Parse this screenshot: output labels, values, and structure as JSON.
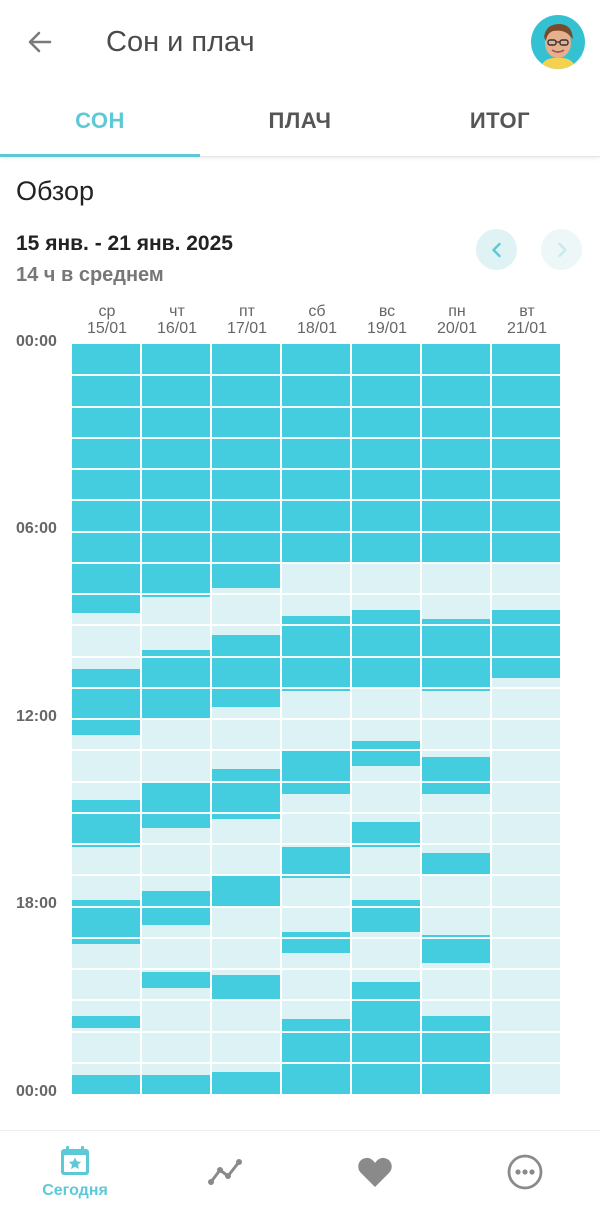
{
  "header": {
    "title": "Сон и плач",
    "back_icon": "arrow-left-icon",
    "avatar": "user-avatar"
  },
  "tabs": [
    {
      "label": "СОН",
      "active": true
    },
    {
      "label": "ПЛАЧ",
      "active": false
    },
    {
      "label": "ИТОГ",
      "active": false
    }
  ],
  "overview": {
    "title": "Обзор",
    "date_range": "15 янв. - 21 янв. 2025",
    "average": "14 ч в среднем"
  },
  "chart_data": {
    "type": "heatmap",
    "title": "Обзор",
    "y_axis_labels": [
      "00:00",
      "06:00",
      "12:00",
      "18:00",
      "00:00"
    ],
    "y_range_hours": [
      0,
      24
    ],
    "days": [
      {
        "weekday": "ср",
        "date": "15/01",
        "sleep_hours": [
          [
            0,
            8.6
          ],
          [
            10.4,
            12.5
          ],
          [
            14.6,
            16.1
          ],
          [
            17.8,
            19.2
          ],
          [
            21.5,
            21.9
          ],
          [
            23.4,
            24
          ]
        ]
      },
      {
        "weekday": "чт",
        "date": "16/01",
        "sleep_hours": [
          [
            0,
            8.1
          ],
          [
            9.8,
            12.0
          ],
          [
            14.0,
            15.5
          ],
          [
            17.5,
            18.6
          ],
          [
            20.1,
            20.6
          ],
          [
            23.4,
            24
          ]
        ]
      },
      {
        "weekday": "пт",
        "date": "17/01",
        "sleep_hours": [
          [
            0,
            7.8
          ],
          [
            9.3,
            11.6
          ],
          [
            13.6,
            15.2
          ],
          [
            17.0,
            18.0
          ],
          [
            20.2,
            21.0
          ],
          [
            23.3,
            24
          ]
        ]
      },
      {
        "weekday": "сб",
        "date": "18/01",
        "sleep_hours": [
          [
            0,
            7.0
          ],
          [
            8.7,
            11.1
          ],
          [
            13.0,
            14.4
          ],
          [
            16.1,
            17.1
          ],
          [
            18.8,
            19.5
          ],
          [
            21.6,
            24
          ]
        ]
      },
      {
        "weekday": "вс",
        "date": "19/01",
        "sleep_hours": [
          [
            0,
            7.0
          ],
          [
            8.5,
            11.0
          ],
          [
            12.7,
            13.5
          ],
          [
            15.3,
            16.1
          ],
          [
            17.8,
            18.8
          ],
          [
            20.4,
            24
          ]
        ]
      },
      {
        "weekday": "пн",
        "date": "20/01",
        "sleep_hours": [
          [
            0,
            7.0
          ],
          [
            8.8,
            11.1
          ],
          [
            13.2,
            14.4
          ],
          [
            16.3,
            17.0
          ],
          [
            18.9,
            19.8
          ],
          [
            21.5,
            24
          ]
        ]
      },
      {
        "weekday": "вт",
        "date": "21/01",
        "sleep_hours": [
          [
            0,
            7.0
          ],
          [
            8.5,
            10.7
          ]
        ]
      }
    ],
    "colors": {
      "sleep": "#43cddf",
      "awake": "#ddf2f5"
    }
  },
  "bottom_nav": [
    {
      "label": "Сегодня",
      "icon": "calendar-star-icon",
      "active": true
    },
    {
      "label": "",
      "icon": "trend-chart-icon",
      "active": false
    },
    {
      "label": "",
      "icon": "heart-icon",
      "active": false
    },
    {
      "label": "",
      "icon": "more-icon",
      "active": false
    }
  ]
}
